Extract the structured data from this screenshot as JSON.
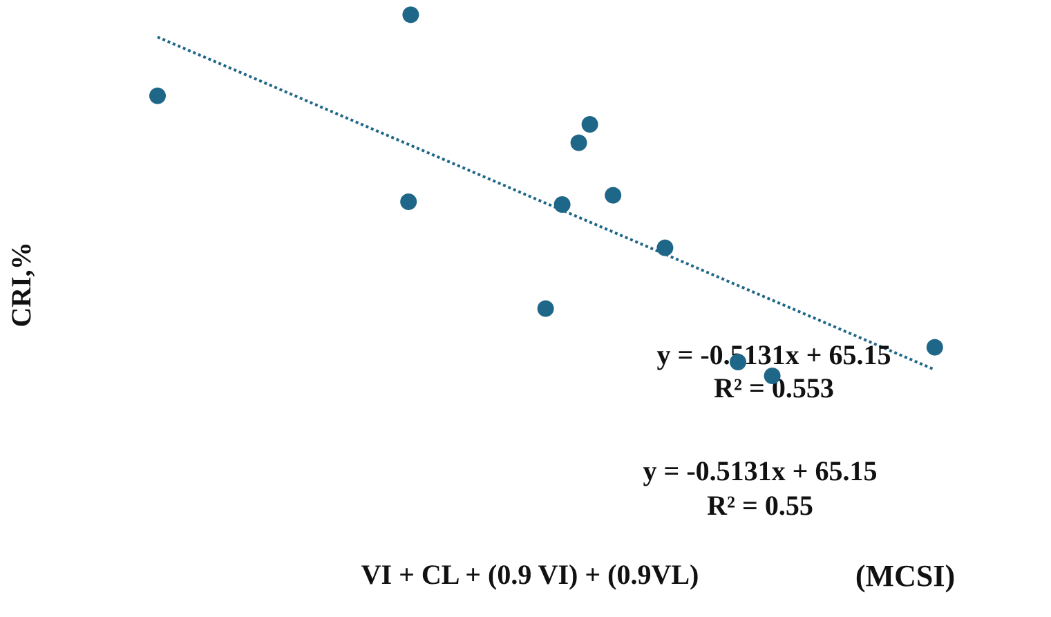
{
  "chart_data": {
    "type": "scatter",
    "x_label": "VI + CL + (0.9 VI) + (0.9VL)",
    "x_unit_label": "(MCSI)",
    "y_label": "CRI,%",
    "annotations": [
      "y = -0.5131x + 65.15",
      "R² = 0.553",
      "y = -0.5131x + 65.15",
      "R² = 0.55"
    ],
    "x": [
      42.9,
      20,
      59.1,
      58.1,
      42.7,
      56.6,
      61.2,
      65.9,
      55.1,
      72.5,
      75.6,
      90.3
    ],
    "values": [
      57.4,
      48.6,
      45.5,
      43.5,
      37.1,
      36.8,
      37.8,
      32.1,
      25.5,
      19.7,
      18.2,
      21.3
    ],
    "color": "#1f6788",
    "trendline": true,
    "xlim": [
      12.5,
      97.5
    ],
    "ylim": [
      14,
      59
    ]
  }
}
